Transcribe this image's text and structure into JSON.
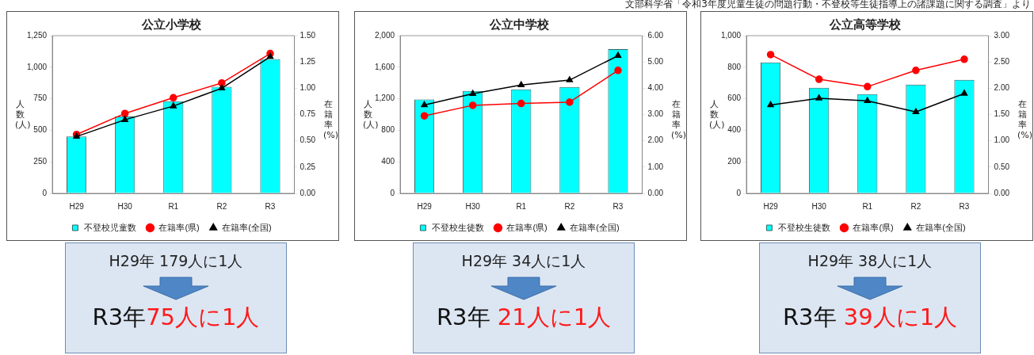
{
  "chart_data": [
    {
      "type": "bar",
      "title": "公立小学校",
      "ylabel": "人数(人)",
      "y2label": "在籍率(%)",
      "categories": [
        "H29",
        "H30",
        "R1",
        "R2",
        "R3"
      ],
      "series": [
        {
          "name": "不登校児童数",
          "type": "bar",
          "color": "#00ffff",
          "values": [
            450,
            610,
            730,
            845,
            1065
          ]
        },
        {
          "name": "在籍率(県)",
          "type": "line",
          "axis": "y2",
          "marker": "circle",
          "color": "#ff0000",
          "values": [
            0.56,
            0.76,
            0.91,
            1.05,
            1.33
          ]
        },
        {
          "name": "在籍率(全国)",
          "type": "line",
          "axis": "y2",
          "marker": "triangle",
          "color": "#000000",
          "values": [
            0.54,
            0.7,
            0.83,
            1.0,
            1.3
          ]
        }
      ],
      "ylim": [
        0,
        1250
      ],
      "yticks": [
        0,
        250,
        500,
        750,
        {
          "value": 1000,
          "label": "1,000"
        },
        {
          "value": 1250,
          "label": "1,250"
        }
      ],
      "y2lim": [
        0,
        1.5
      ],
      "y2ticks": [
        {
          "value": 0,
          "label": "0.00"
        },
        {
          "value": 0.25,
          "label": "0.25"
        },
        {
          "value": 0.5,
          "label": "0.50"
        },
        {
          "value": 0.75,
          "label": "0.75"
        },
        {
          "value": 1,
          "label": "1.00"
        },
        {
          "value": 1.25,
          "label": "1.25"
        },
        {
          "value": 1.5,
          "label": "1.50"
        }
      ],
      "grid": false,
      "legend": "bottom",
      "annotations": [
        "H29年 179人に1人",
        "R3年",
        "75人に1人"
      ]
    },
    {
      "type": "bar",
      "title": "公立中学校",
      "ylabel": "人数(人)",
      "y2label": "在籍率(%)",
      "categories": [
        "H29",
        "H30",
        "R1",
        "R2",
        "R3"
      ],
      "series": [
        {
          "name": "不登校生徒数",
          "type": "bar",
          "color": "#00ffff",
          "values": [
            1190,
            1300,
            1320,
            1350,
            1830
          ]
        },
        {
          "name": "在籍率(県)",
          "type": "line",
          "axis": "y2",
          "marker": "circle",
          "color": "#ff0000",
          "values": [
            2.95,
            3.35,
            3.42,
            3.47,
            4.68
          ]
        },
        {
          "name": "在籍率(全国)",
          "type": "line",
          "axis": "y2",
          "marker": "triangle",
          "color": "#000000",
          "values": [
            3.36,
            3.79,
            4.12,
            4.31,
            5.24
          ]
        }
      ],
      "ylim": [
        0,
        2000
      ],
      "yticks": [
        0,
        400,
        800,
        {
          "value": 1200,
          "label": "1,200"
        },
        {
          "value": 1600,
          "label": "1,600"
        },
        {
          "value": 2000,
          "label": "2,000"
        }
      ],
      "y2lim": [
        0,
        6
      ],
      "y2ticks": [
        {
          "value": 0,
          "label": "0.00"
        },
        {
          "value": 1,
          "label": "1.00"
        },
        {
          "value": 2,
          "label": "2.00"
        },
        {
          "value": 3,
          "label": "3.00"
        },
        {
          "value": 4,
          "label": "4.00"
        },
        {
          "value": 5,
          "label": "5.00"
        },
        {
          "value": 6,
          "label": "6.00"
        }
      ],
      "grid": false,
      "legend": "bottom",
      "annotations": [
        "H29年 34人に1人",
        "R3年 ",
        "21人に1人"
      ]
    },
    {
      "type": "bar",
      "title": "公立高等学校",
      "ylabel": "人数(人)",
      "y2label": "在籍率(%)",
      "categories": [
        "H29",
        "H30",
        "R1",
        "R2",
        "R3"
      ],
      "series": [
        {
          "name": "不登校生徒数",
          "type": "bar",
          "color": "#00ffff",
          "values": [
            830,
            670,
            630,
            690,
            720
          ]
        },
        {
          "name": "在籍率(県)",
          "type": "line",
          "axis": "y2",
          "marker": "circle",
          "color": "#ff0000",
          "values": [
            2.64,
            2.17,
            2.03,
            2.34,
            2.55
          ]
        },
        {
          "name": "在籍率(全国)",
          "type": "line",
          "axis": "y2",
          "marker": "triangle",
          "color": "#000000",
          "values": [
            1.68,
            1.81,
            1.76,
            1.55,
            1.9
          ]
        }
      ],
      "ylim": [
        0,
        1000
      ],
      "yticks": [
        0,
        200,
        400,
        600,
        800,
        {
          "value": 1000,
          "label": "1,000"
        }
      ],
      "y2lim": [
        0,
        3
      ],
      "y2ticks": [
        {
          "value": 0,
          "label": "0.00"
        },
        {
          "value": 0.5,
          "label": "0.50"
        },
        {
          "value": 1,
          "label": "1.00"
        },
        {
          "value": 1.5,
          "label": "1.50"
        },
        {
          "value": 2,
          "label": "2.00"
        },
        {
          "value": 2.5,
          "label": "2.50"
        },
        {
          "value": 3,
          "label": "3.00"
        }
      ],
      "grid": false,
      "legend": "bottom",
      "annotations": [
        "H29年 38人に1人",
        "R3年 ",
        "39人に1人",
        "文部科学省「令和3年度児童生徒の問題行動・不登校等生徒指導上の諸課題に関する調査」より"
      ]
    }
  ]
}
